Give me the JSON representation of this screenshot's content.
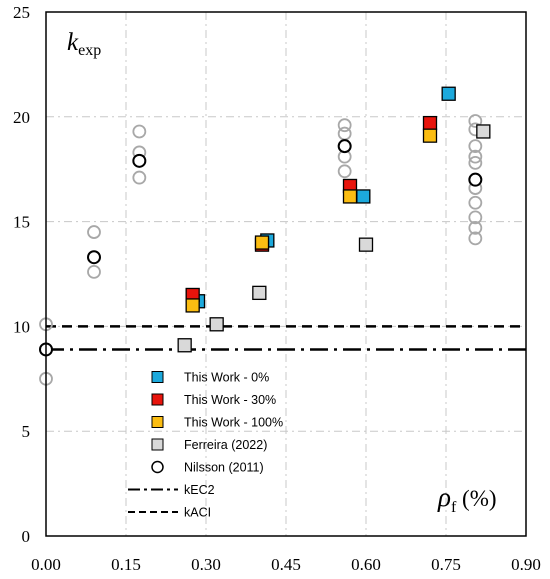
{
  "chart_data": {
    "type": "scatter",
    "title": "",
    "xlabel": {
      "symbol": "ρ",
      "subscript": "f",
      "unit": " (%)"
    },
    "ylabel": {
      "symbol": "k",
      "subscript": "exp"
    },
    "xlim": [
      0,
      0.9
    ],
    "ylim": [
      0,
      25
    ],
    "xticks": [
      0,
      0.15,
      0.3,
      0.45,
      0.6,
      0.75,
      0.9
    ],
    "xtick_labels": [
      "0.00",
      "0.15",
      "0.30",
      "0.45",
      "0.60",
      "0.75",
      "0.90"
    ],
    "yticks": [
      0,
      5,
      10,
      15,
      20,
      25
    ],
    "ytick_labels": [
      "0",
      "5",
      "10",
      "15",
      "20",
      "25"
    ],
    "grid": "dash-dot, both axes",
    "legend_position": "bottom-left",
    "series": [
      {
        "name": "Nilsson (2011)",
        "marker": "circle-grey",
        "color": "#a8a8a8",
        "points": [
          [
            0,
            10.1
          ],
          [
            0,
            7.5
          ],
          [
            0.09,
            14.5
          ],
          [
            0.09,
            12.6
          ],
          [
            0.175,
            19.3
          ],
          [
            0.175,
            18.3
          ],
          [
            0.175,
            17.1
          ],
          [
            0.56,
            19.6
          ],
          [
            0.56,
            19.2
          ],
          [
            0.56,
            18.1
          ],
          [
            0.56,
            17.4
          ],
          [
            0.805,
            19.8
          ],
          [
            0.805,
            19.4
          ],
          [
            0.805,
            18.6
          ],
          [
            0.805,
            18.1
          ],
          [
            0.805,
            17.8
          ],
          [
            0.805,
            16.6
          ],
          [
            0.805,
            15.9
          ],
          [
            0.805,
            15.2
          ],
          [
            0.805,
            14.7
          ],
          [
            0.805,
            14.2
          ]
        ]
      },
      {
        "name": "Nilsson (2011)",
        "marker": "circle-black",
        "color": "#000000",
        "points": [
          [
            0,
            8.9
          ],
          [
            0.09,
            13.3
          ],
          [
            0.175,
            17.9
          ],
          [
            0.56,
            18.6
          ],
          [
            0.805,
            17.0
          ]
        ]
      },
      {
        "name": "Ferreira (2022)",
        "marker": "square",
        "color": "#d9d9d9",
        "points": [
          [
            0.26,
            9.1
          ],
          [
            0.32,
            10.1
          ],
          [
            0.4,
            11.6
          ],
          [
            0.6,
            13.9
          ],
          [
            0.82,
            19.3
          ]
        ]
      },
      {
        "name": "This Work - 0%",
        "marker": "square",
        "color": "#1ca9dc",
        "points": [
          [
            0.285,
            11.2
          ],
          [
            0.415,
            14.1
          ],
          [
            0.595,
            16.2
          ],
          [
            0.755,
            21.1
          ]
        ]
      },
      {
        "name": "This Work - 30%",
        "marker": "square",
        "color": "#e8140c",
        "points": [
          [
            0.275,
            11.5
          ],
          [
            0.405,
            13.9
          ],
          [
            0.57,
            16.7
          ],
          [
            0.72,
            19.7
          ]
        ]
      },
      {
        "name": "This Work - 100%",
        "marker": "square",
        "color": "#fbbd12",
        "points": [
          [
            0.275,
            11.0
          ],
          [
            0.405,
            14.0
          ],
          [
            0.57,
            16.2
          ],
          [
            0.72,
            19.1
          ]
        ]
      }
    ],
    "reference_lines": [
      {
        "name": "kEC2",
        "y": 8.9,
        "style": "dash-dot"
      },
      {
        "name": "kACI",
        "y": 10.0,
        "style": "dashed"
      }
    ],
    "legend": [
      {
        "label": "This Work - 0%",
        "marker": "square",
        "color": "#1ca9dc"
      },
      {
        "label": "This Work - 30%",
        "marker": "square",
        "color": "#e8140c"
      },
      {
        "label": "This Work - 100%",
        "marker": "square",
        "color": "#fbbd12"
      },
      {
        "label": "Ferreira (2022)",
        "marker": "square",
        "color": "#d9d9d9"
      },
      {
        "label": "Nilsson (2011)",
        "marker": "circle",
        "color": "#ffffff"
      },
      {
        "label": "kEC2",
        "marker": "dash-dot-line"
      },
      {
        "label": "kACI",
        "marker": "dashed-line"
      }
    ]
  }
}
